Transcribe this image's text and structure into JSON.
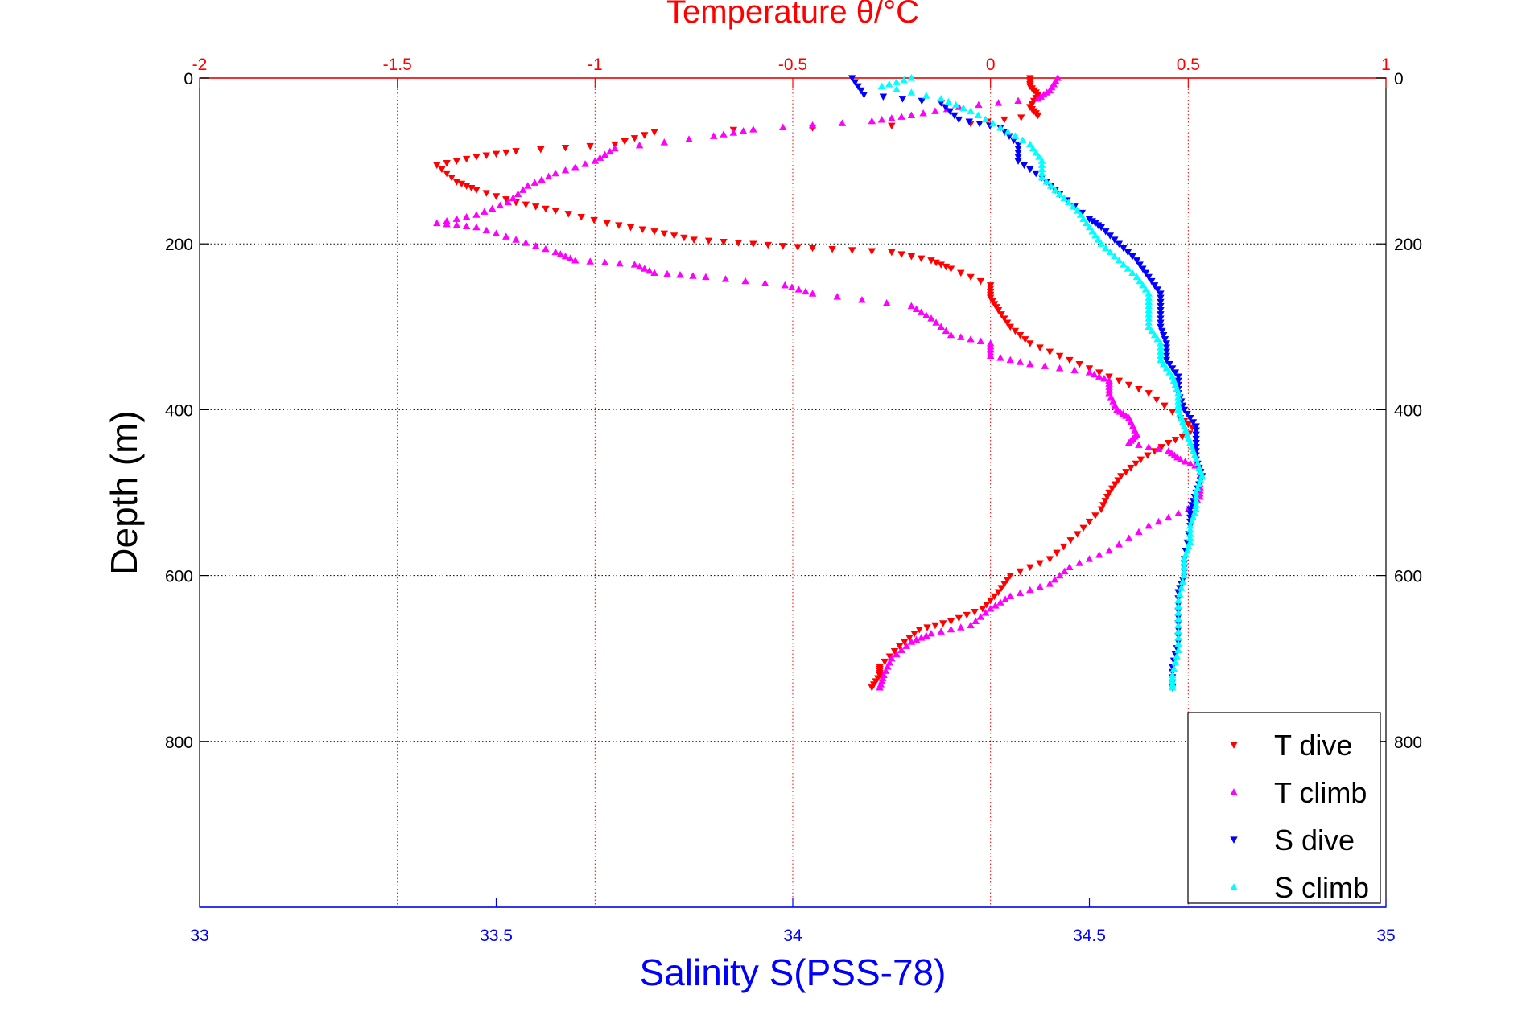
{
  "colors": {
    "temperature_axis": "#ff0000",
    "salinity_axis": "#0000ff",
    "depth_axis": "#000000",
    "t_dive": "#ff0000",
    "t_climb": "#ff00ff",
    "s_dive": "#0000ff",
    "s_climb": "#00ffff"
  },
  "chart_data": {
    "type": "scatter",
    "title": "Temperature θ/°C",
    "xlabel": "Salinity S(PSS-78)",
    "ylabel": "Depth (m)",
    "temperature_axis": {
      "label": "Temperature θ/°C",
      "range": [
        -2,
        1
      ],
      "ticks": [
        -2,
        -1.5,
        -1,
        -0.5,
        0,
        0.5,
        1
      ],
      "tick_labels": [
        "-2",
        "-1.5",
        "-1",
        "-0.5",
        "0",
        "0.5",
        "1"
      ]
    },
    "salinity_axis": {
      "label": "Salinity S(PSS-78)",
      "range": [
        33,
        35
      ],
      "ticks": [
        33,
        33.5,
        34,
        34.5,
        35
      ],
      "tick_labels": [
        "33",
        "33.5",
        "34",
        "34.5",
        "35"
      ]
    },
    "depth_axis": {
      "label": "Depth (m)",
      "range": [
        0,
        1000
      ],
      "reversed": true,
      "ticks": [
        0,
        200,
        400,
        600,
        800
      ],
      "tick_labels": [
        "0",
        "200",
        "400",
        "600",
        "800"
      ]
    },
    "grid": true,
    "legend": {
      "placement": "bottom-right",
      "entries": [
        "T dive",
        "T climb",
        "S dive",
        "S climb"
      ]
    },
    "series": [
      {
        "name": "T dive",
        "axis": "temperature",
        "marker": "triangle-down",
        "points": [
          [
            0.1,
            0
          ],
          [
            0.1,
            10
          ],
          [
            0.12,
            20
          ],
          [
            0.1,
            35
          ],
          [
            0.12,
            45
          ],
          [
            -0.05,
            55
          ],
          [
            -0.85,
            65
          ],
          [
            -0.95,
            80
          ],
          [
            -1.2,
            88
          ],
          [
            -1.3,
            95
          ],
          [
            -1.4,
            105
          ],
          [
            -1.35,
            125
          ],
          [
            -1.3,
            135
          ],
          [
            -1.2,
            150
          ],
          [
            -1.1,
            160
          ],
          [
            -0.97,
            175
          ],
          [
            -0.85,
            185
          ],
          [
            -0.75,
            195
          ],
          [
            -0.6,
            200
          ],
          [
            -0.45,
            205
          ],
          [
            -0.25,
            210
          ],
          [
            -0.15,
            220
          ],
          [
            -0.1,
            230
          ],
          [
            0.0,
            250
          ],
          [
            0.0,
            265
          ],
          [
            0.02,
            280
          ],
          [
            0.05,
            300
          ],
          [
            0.1,
            320
          ],
          [
            0.2,
            340
          ],
          [
            0.3,
            360
          ],
          [
            0.4,
            380
          ],
          [
            0.48,
            410
          ],
          [
            0.52,
            425
          ],
          [
            0.45,
            440
          ],
          [
            0.38,
            460
          ],
          [
            0.33,
            480
          ],
          [
            0.3,
            500
          ],
          [
            0.28,
            520
          ],
          [
            0.22,
            550
          ],
          [
            0.15,
            580
          ],
          [
            0.05,
            600
          ],
          [
            0.02,
            620
          ],
          [
            -0.02,
            640
          ],
          [
            -0.1,
            655
          ],
          [
            -0.18,
            665
          ],
          [
            -0.23,
            685
          ],
          [
            -0.28,
            710
          ],
          [
            -0.28,
            720
          ],
          [
            -0.3,
            735
          ]
        ]
      },
      {
        "name": "T climb",
        "axis": "temperature",
        "marker": "triangle-up",
        "points": [
          [
            0.17,
            0
          ],
          [
            0.15,
            15
          ],
          [
            0.12,
            25
          ],
          [
            -0.08,
            35
          ],
          [
            -0.2,
            45
          ],
          [
            -0.3,
            52
          ],
          [
            -0.6,
            62
          ],
          [
            -0.7,
            70
          ],
          [
            -0.95,
            85
          ],
          [
            -1.0,
            100
          ],
          [
            -1.1,
            115
          ],
          [
            -1.17,
            130
          ],
          [
            -1.22,
            150
          ],
          [
            -1.3,
            165
          ],
          [
            -1.4,
            175
          ],
          [
            -1.3,
            180
          ],
          [
            -1.2,
            195
          ],
          [
            -1.1,
            210
          ],
          [
            -1.05,
            220
          ],
          [
            -0.9,
            225
          ],
          [
            -0.85,
            235
          ],
          [
            -0.72,
            240
          ],
          [
            -0.52,
            250
          ],
          [
            -0.45,
            260
          ],
          [
            -0.2,
            275
          ],
          [
            -0.15,
            290
          ],
          [
            -0.1,
            310
          ],
          [
            0.0,
            320
          ],
          [
            0.0,
            335
          ],
          [
            0.1,
            345
          ],
          [
            0.25,
            355
          ],
          [
            0.3,
            365
          ],
          [
            0.3,
            380
          ],
          [
            0.32,
            400
          ],
          [
            0.35,
            410
          ],
          [
            0.37,
            430
          ],
          [
            0.35,
            440
          ],
          [
            0.45,
            450
          ],
          [
            0.48,
            460
          ],
          [
            0.53,
            470
          ],
          [
            0.53,
            490
          ],
          [
            0.53,
            505
          ],
          [
            0.5,
            520
          ],
          [
            0.4,
            540
          ],
          [
            0.3,
            570
          ],
          [
            0.2,
            590
          ],
          [
            0.15,
            610
          ],
          [
            0.05,
            625
          ],
          [
            0.0,
            640
          ],
          [
            -0.05,
            660
          ],
          [
            -0.15,
            670
          ],
          [
            -0.2,
            680
          ],
          [
            -0.25,
            700
          ],
          [
            -0.27,
            720
          ],
          [
            -0.28,
            735
          ]
        ]
      },
      {
        "name": "S dive",
        "axis": "salinity",
        "marker": "triangle-down",
        "points": [
          [
            34.1,
            0
          ],
          [
            34.12,
            20
          ],
          [
            34.25,
            30
          ],
          [
            34.28,
            50
          ],
          [
            34.35,
            60
          ],
          [
            34.38,
            80
          ],
          [
            34.38,
            100
          ],
          [
            34.42,
            120
          ],
          [
            34.45,
            140
          ],
          [
            34.5,
            170
          ],
          [
            34.52,
            180
          ],
          [
            34.55,
            200
          ],
          [
            34.58,
            220
          ],
          [
            34.6,
            240
          ],
          [
            34.62,
            260
          ],
          [
            34.62,
            280
          ],
          [
            34.62,
            300
          ],
          [
            34.63,
            320
          ],
          [
            34.63,
            340
          ],
          [
            34.65,
            360
          ],
          [
            34.65,
            380
          ],
          [
            34.66,
            400
          ],
          [
            34.68,
            420
          ],
          [
            34.68,
            440
          ],
          [
            34.68,
            460
          ],
          [
            34.69,
            480
          ],
          [
            34.68,
            500
          ],
          [
            34.67,
            520
          ],
          [
            34.67,
            540
          ],
          [
            34.66,
            580
          ],
          [
            34.66,
            600
          ],
          [
            34.65,
            620
          ],
          [
            34.65,
            650
          ],
          [
            34.65,
            680
          ],
          [
            34.64,
            710
          ],
          [
            34.64,
            735
          ]
        ]
      },
      {
        "name": "S climb",
        "axis": "salinity",
        "marker": "triangle-up",
        "points": [
          [
            34.2,
            0
          ],
          [
            34.15,
            10
          ],
          [
            34.25,
            25
          ],
          [
            34.3,
            40
          ],
          [
            34.35,
            60
          ],
          [
            34.4,
            80
          ],
          [
            34.42,
            100
          ],
          [
            34.42,
            120
          ],
          [
            34.45,
            140
          ],
          [
            34.48,
            160
          ],
          [
            34.5,
            180
          ],
          [
            34.52,
            200
          ],
          [
            34.55,
            220
          ],
          [
            34.58,
            240
          ],
          [
            34.6,
            260
          ],
          [
            34.6,
            280
          ],
          [
            34.6,
            300
          ],
          [
            34.62,
            320
          ],
          [
            34.62,
            340
          ],
          [
            34.64,
            360
          ],
          [
            34.65,
            380
          ],
          [
            34.65,
            400
          ],
          [
            34.66,
            420
          ],
          [
            34.67,
            440
          ],
          [
            34.68,
            460
          ],
          [
            34.69,
            480
          ],
          [
            34.68,
            500
          ],
          [
            34.68,
            520
          ],
          [
            34.67,
            540
          ],
          [
            34.67,
            560
          ],
          [
            34.66,
            580
          ],
          [
            34.66,
            600
          ],
          [
            34.65,
            630
          ],
          [
            34.65,
            660
          ],
          [
            34.65,
            690
          ],
          [
            34.64,
            720
          ],
          [
            34.64,
            735
          ]
        ]
      }
    ]
  }
}
